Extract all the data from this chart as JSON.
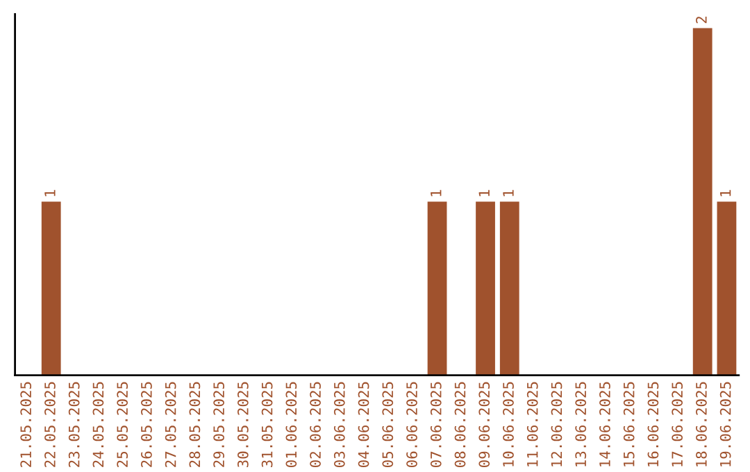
{
  "chart_data": {
    "type": "bar",
    "categories": [
      "21.05.2025",
      "22.05.2025",
      "23.05.2025",
      "24.05.2025",
      "25.05.2025",
      "26.05.2025",
      "27.05.2025",
      "28.05.2025",
      "29.05.2025",
      "30.05.2025",
      "31.05.2025",
      "01.06.2025",
      "02.06.2025",
      "03.06.2025",
      "04.06.2025",
      "05.06.2025",
      "06.06.2025",
      "07.06.2025",
      "08.06.2025",
      "09.06.2025",
      "10.06.2025",
      "11.06.2025",
      "12.06.2025",
      "13.06.2025",
      "14.06.2025",
      "15.06.2025",
      "16.06.2025",
      "17.06.2025",
      "18.06.2025",
      "19.06.2025"
    ],
    "values": [
      0,
      1,
      0,
      0,
      0,
      0,
      0,
      0,
      0,
      0,
      0,
      0,
      0,
      0,
      0,
      0,
      0,
      1,
      0,
      1,
      1,
      0,
      0,
      0,
      0,
      0,
      0,
      0,
      2,
      1
    ],
    "value_labels": [
      null,
      "1",
      null,
      null,
      null,
      null,
      null,
      null,
      null,
      null,
      null,
      null,
      null,
      null,
      null,
      null,
      null,
      "1",
      null,
      "1",
      "1",
      null,
      null,
      null,
      null,
      null,
      null,
      null,
      "2",
      "1"
    ],
    "color": "#a0522d",
    "ylim": [
      0,
      2.08
    ],
    "tick_labels": "x",
    "grid": false,
    "legend": false
  }
}
